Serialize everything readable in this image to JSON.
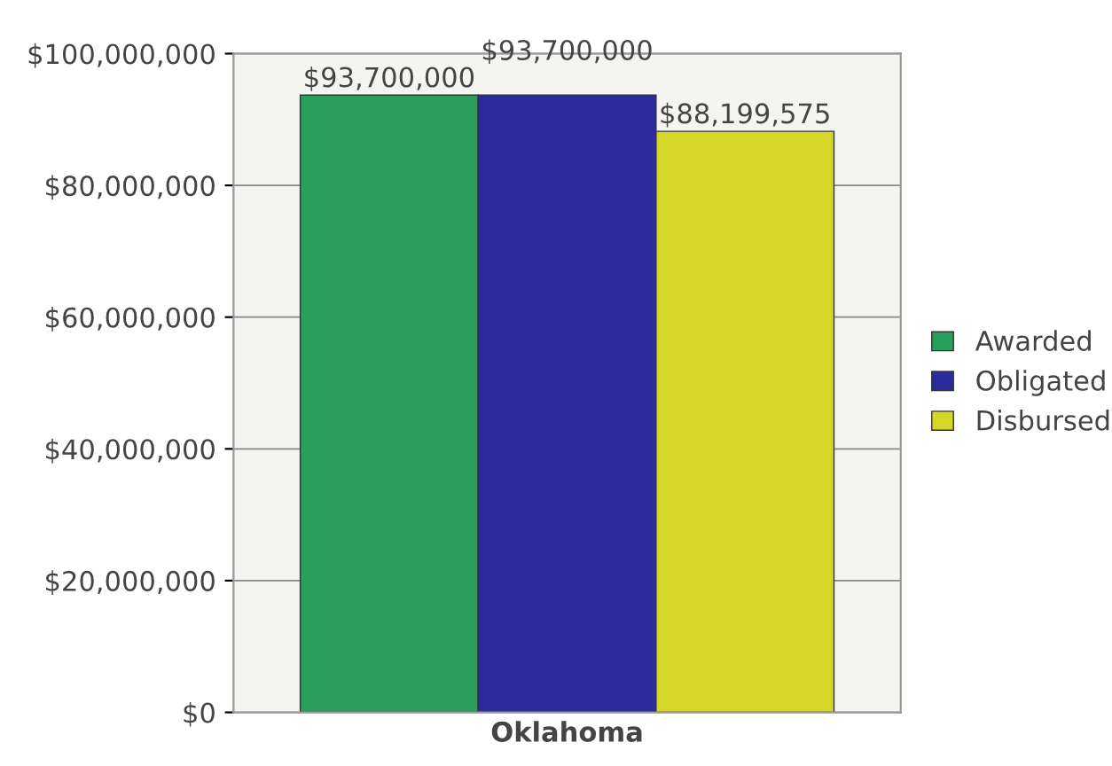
{
  "chart_data": {
    "type": "bar",
    "categories": [
      "Oklahoma"
    ],
    "series": [
      {
        "name": "Awarded",
        "color": "#2a9e5c",
        "values": [
          93700000
        ],
        "value_labels": [
          "$93,700,000"
        ]
      },
      {
        "name": "Obligated",
        "color": "#2b2b9e",
        "values": [
          93700000
        ],
        "value_labels": [
          "$93,700,000"
        ]
      },
      {
        "name": "Disbursed",
        "color": "#d6d626",
        "values": [
          88199575
        ],
        "value_labels": [
          "$88,199,575"
        ]
      }
    ],
    "ylim": [
      0,
      100000000
    ],
    "yticks": [
      {
        "value": 0,
        "label": "$0"
      },
      {
        "value": 20000000,
        "label": "$20,000,000"
      },
      {
        "value": 40000000,
        "label": "$40,000,000"
      },
      {
        "value": 60000000,
        "label": "$60,000,000"
      },
      {
        "value": 80000000,
        "label": "$80,000,000"
      },
      {
        "value": 100000000,
        "label": "$100,000,000"
      }
    ],
    "grid": "y",
    "legend": "right"
  }
}
